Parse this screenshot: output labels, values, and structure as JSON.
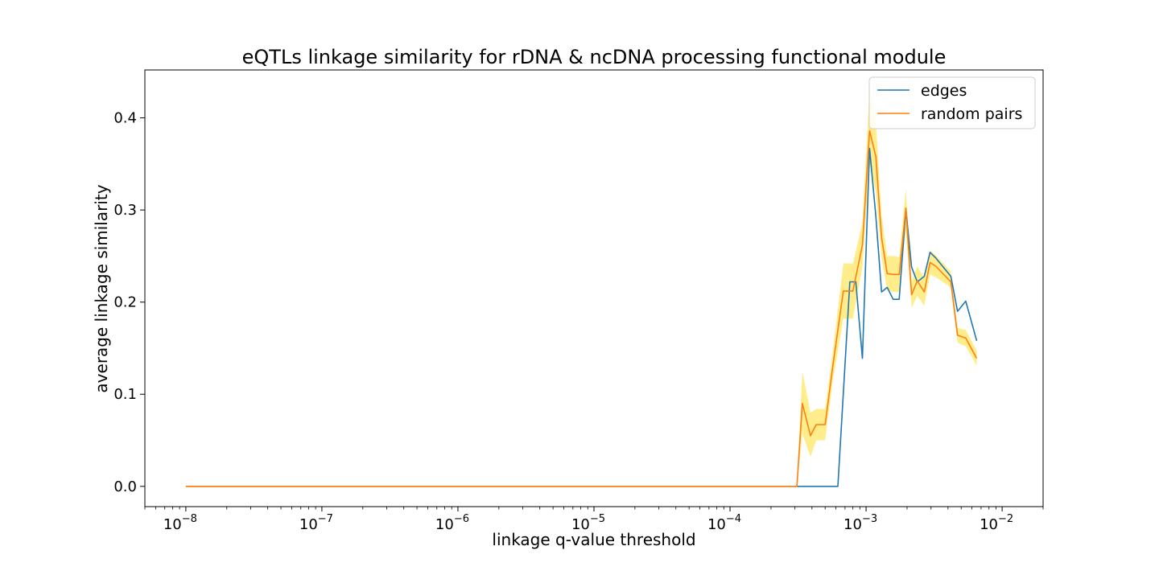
{
  "chart_data": {
    "type": "line",
    "title": "eQTLs linkage similarity for rDNA & ncDNA processing functional module",
    "xlabel": "linkage q-value threshold",
    "ylabel": "average linkage similarity",
    "xscale": "log",
    "xlim": [
      5e-09,
      0.02
    ],
    "ylim": [
      -0.022,
      0.452
    ],
    "grid": false,
    "legend_placement": "top-right",
    "x_ticks": [
      {
        "value": 1e-08,
        "base": "10",
        "exp": "−8"
      },
      {
        "value": 1e-07,
        "base": "10",
        "exp": "−7"
      },
      {
        "value": 1e-06,
        "base": "10",
        "exp": "−6"
      },
      {
        "value": 1e-05,
        "base": "10",
        "exp": "−5"
      },
      {
        "value": 0.0001,
        "base": "10",
        "exp": "−4"
      },
      {
        "value": 0.001,
        "base": "10",
        "exp": "−3"
      },
      {
        "value": 0.01,
        "base": "10",
        "exp": "−2"
      }
    ],
    "y_ticks": [
      {
        "value": 0.0,
        "label": "0.0"
      },
      {
        "value": 0.1,
        "label": "0.1"
      },
      {
        "value": 0.2,
        "label": "0.2"
      },
      {
        "value": 0.3,
        "label": "0.3"
      },
      {
        "value": 0.4,
        "label": "0.4"
      }
    ],
    "series": [
      {
        "name": "edges",
        "color": "#1f77b4",
        "points": [
          [
            1e-08,
            0.0
          ],
          [
            0.00031,
            0.0
          ],
          [
            0.00062,
            0.0
          ],
          [
            0.00076,
            0.222
          ],
          [
            0.00084,
            0.222
          ],
          [
            0.00094,
            0.139
          ],
          [
            0.00106,
            0.367
          ],
          [
            0.00118,
            0.293
          ],
          [
            0.0013,
            0.211
          ],
          [
            0.00143,
            0.216
          ],
          [
            0.00158,
            0.203
          ],
          [
            0.00175,
            0.203
          ],
          [
            0.00196,
            0.301
          ],
          [
            0.00216,
            0.238
          ],
          [
            0.00238,
            0.222
          ],
          [
            0.00268,
            0.228
          ],
          [
            0.00295,
            0.254
          ],
          [
            0.00325,
            0.248
          ],
          [
            0.0042,
            0.228
          ],
          [
            0.0047,
            0.19
          ],
          [
            0.0054,
            0.201
          ],
          [
            0.0065,
            0.158
          ]
        ]
      },
      {
        "name": "random pairs",
        "color": "#ff7f0e",
        "band_color": "#ffd700",
        "points": [
          [
            1e-08,
            0.0
          ],
          [
            0.00031,
            0.0
          ],
          [
            0.00034,
            0.09
          ],
          [
            0.00039,
            0.055
          ],
          [
            0.00043,
            0.067
          ],
          [
            0.0005,
            0.067
          ],
          [
            0.00057,
            0.131
          ],
          [
            0.00068,
            0.212
          ],
          [
            0.0008,
            0.212
          ],
          [
            0.00094,
            0.262
          ],
          [
            0.00106,
            0.386
          ],
          [
            0.00118,
            0.358
          ],
          [
            0.0013,
            0.27
          ],
          [
            0.00143,
            0.231
          ],
          [
            0.00158,
            0.23
          ],
          [
            0.00175,
            0.23
          ],
          [
            0.00196,
            0.302
          ],
          [
            0.00216,
            0.208
          ],
          [
            0.00238,
            0.223
          ],
          [
            0.00268,
            0.211
          ],
          [
            0.00295,
            0.243
          ],
          [
            0.00325,
            0.239
          ],
          [
            0.0042,
            0.222
          ],
          [
            0.0047,
            0.164
          ],
          [
            0.0054,
            0.161
          ],
          [
            0.0065,
            0.139
          ]
        ],
        "lower": [
          0.0,
          0.0,
          0.057,
          0.032,
          0.05,
          0.05,
          0.115,
          0.182,
          0.182,
          0.238,
          0.35,
          0.32,
          0.248,
          0.213,
          0.211,
          0.211,
          0.279,
          0.194,
          0.207,
          0.196,
          0.23,
          0.227,
          0.216,
          0.156,
          0.152,
          0.131
        ],
        "upper": [
          0.0,
          0.0,
          0.125,
          0.08,
          0.084,
          0.084,
          0.147,
          0.242,
          0.242,
          0.286,
          0.432,
          0.396,
          0.295,
          0.25,
          0.25,
          0.249,
          0.323,
          0.222,
          0.239,
          0.226,
          0.256,
          0.251,
          0.233,
          0.172,
          0.17,
          0.147
        ]
      }
    ]
  }
}
